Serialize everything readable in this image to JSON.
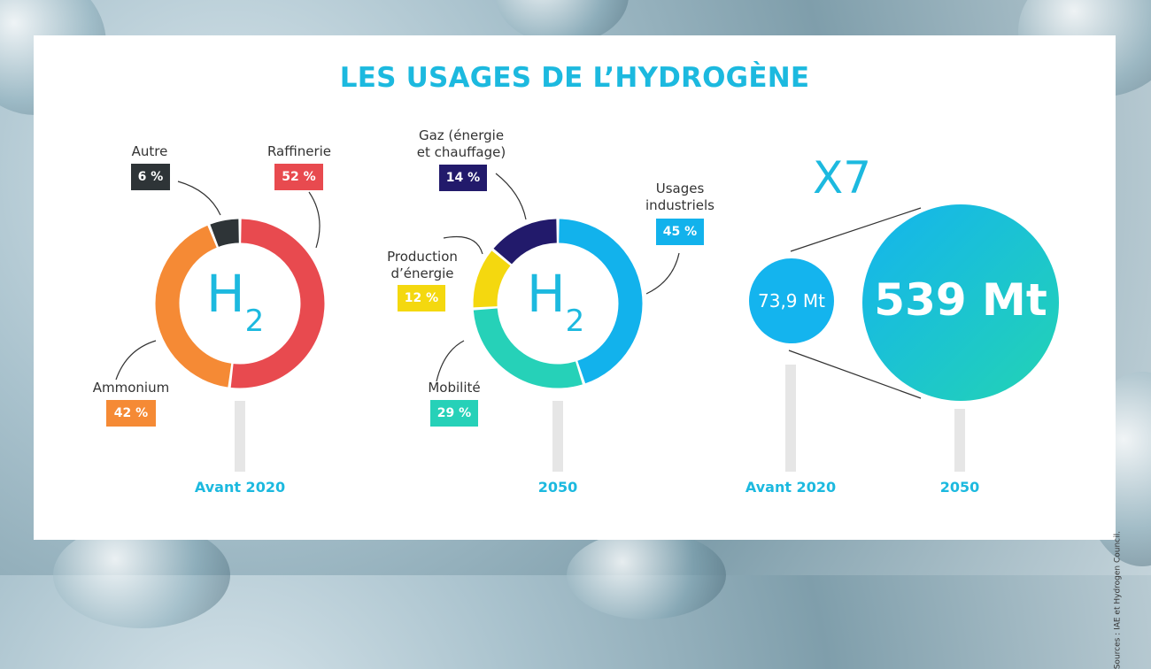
{
  "title": "LES USAGES DE L’HYDROGÈNE",
  "source": "Sources : IAE et Hydrogen Council.",
  "chart_data": [
    {
      "type": "pie",
      "title": "Avant 2020",
      "center_label": "H",
      "center_sub": "2",
      "slices": [
        {
          "name": "Raffinerie",
          "value": 52,
          "display": "52 %",
          "color": "#e84a4f"
        },
        {
          "name": "Ammonium",
          "value": 42,
          "display": "42 %",
          "color": "#f58a35"
        },
        {
          "name": "Autre",
          "value": 6,
          "display": "6 %",
          "color": "#2e3437"
        }
      ]
    },
    {
      "type": "pie",
      "title": "2050",
      "center_label": "H",
      "center_sub": "2",
      "slices": [
        {
          "name": "Usages industriels",
          "value": 45,
          "display": "45 %",
          "color": "#12b2ec"
        },
        {
          "name": "Mobilité",
          "value": 29,
          "display": "29 %",
          "color": "#26d1b8"
        },
        {
          "name": "Production d’énergie",
          "value": 12,
          "display": "12 %",
          "color": "#f4d80f"
        },
        {
          "name": "Gaz (énergie et chauffage)",
          "value": 14,
          "display": "14 %",
          "color": "#221a6b"
        }
      ]
    },
    {
      "type": "bubble",
      "factor": "X7",
      "points": [
        {
          "category": "Avant 2020",
          "value": 73.9,
          "display": "73,9 Mt"
        },
        {
          "category": "2050",
          "value": 539,
          "display": "539 Mt"
        }
      ]
    }
  ],
  "labels": {
    "autre": "Autre",
    "raffinerie": "Raffinerie",
    "ammonium": "Ammonium",
    "gaz_l1": "Gaz (énergie",
    "gaz_l2": "et chauffage)",
    "usages_l1": "Usages",
    "usages_l2": "industriels",
    "prod_l1": "Production",
    "prod_l2": "d’énergie",
    "mobilite": "Mobilité"
  },
  "years": {
    "before": "Avant 2020",
    "after": "2050"
  },
  "colors": {
    "accent": "#1cb9df",
    "stand": "#e6e6e6"
  }
}
